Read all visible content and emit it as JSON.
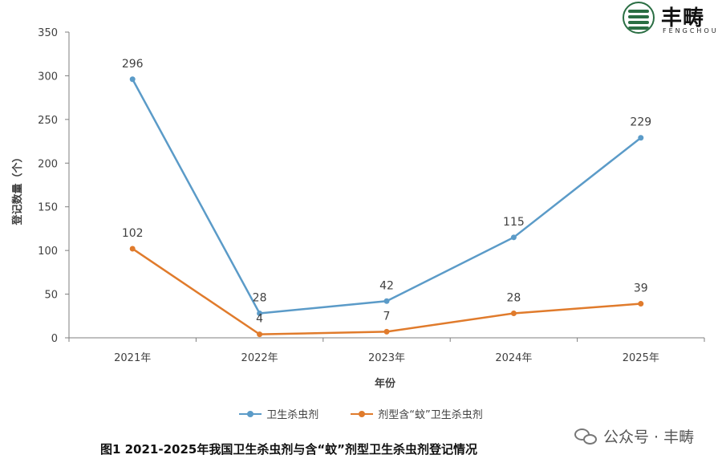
{
  "chart_data": {
    "type": "line",
    "categories": [
      "2021年",
      "2022年",
      "2023年",
      "2024年",
      "2025年"
    ],
    "series": [
      {
        "name": "卫生杀虫剂",
        "color": "#5b9bc8",
        "values": [
          296,
          28,
          42,
          115,
          229
        ]
      },
      {
        "name": "剂型含“蚊”卫生杀虫剂",
        "color": "#e07b2c",
        "values": [
          102,
          4,
          7,
          28,
          39
        ]
      }
    ],
    "yticks": [
      "0",
      "50",
      "100",
      "150",
      "200",
      "250",
      "300",
      "350"
    ],
    "ylim": [
      0,
      350
    ],
    "xlabel": "年份",
    "ylabel": "登记数量（个）",
    "legend_position": "bottom",
    "grid": false
  },
  "caption": "图1 2021-2025年我国卫生杀虫剂与含“蚊”剂型卫生杀虫剂登记情况",
  "logo": {
    "name_cn": "丰畴",
    "name_en": "FENGCHOU",
    "icon": "fengchou-logo-icon"
  },
  "watermark": {
    "text": "公众号 · 丰畴",
    "icon": "wechat-icon"
  }
}
